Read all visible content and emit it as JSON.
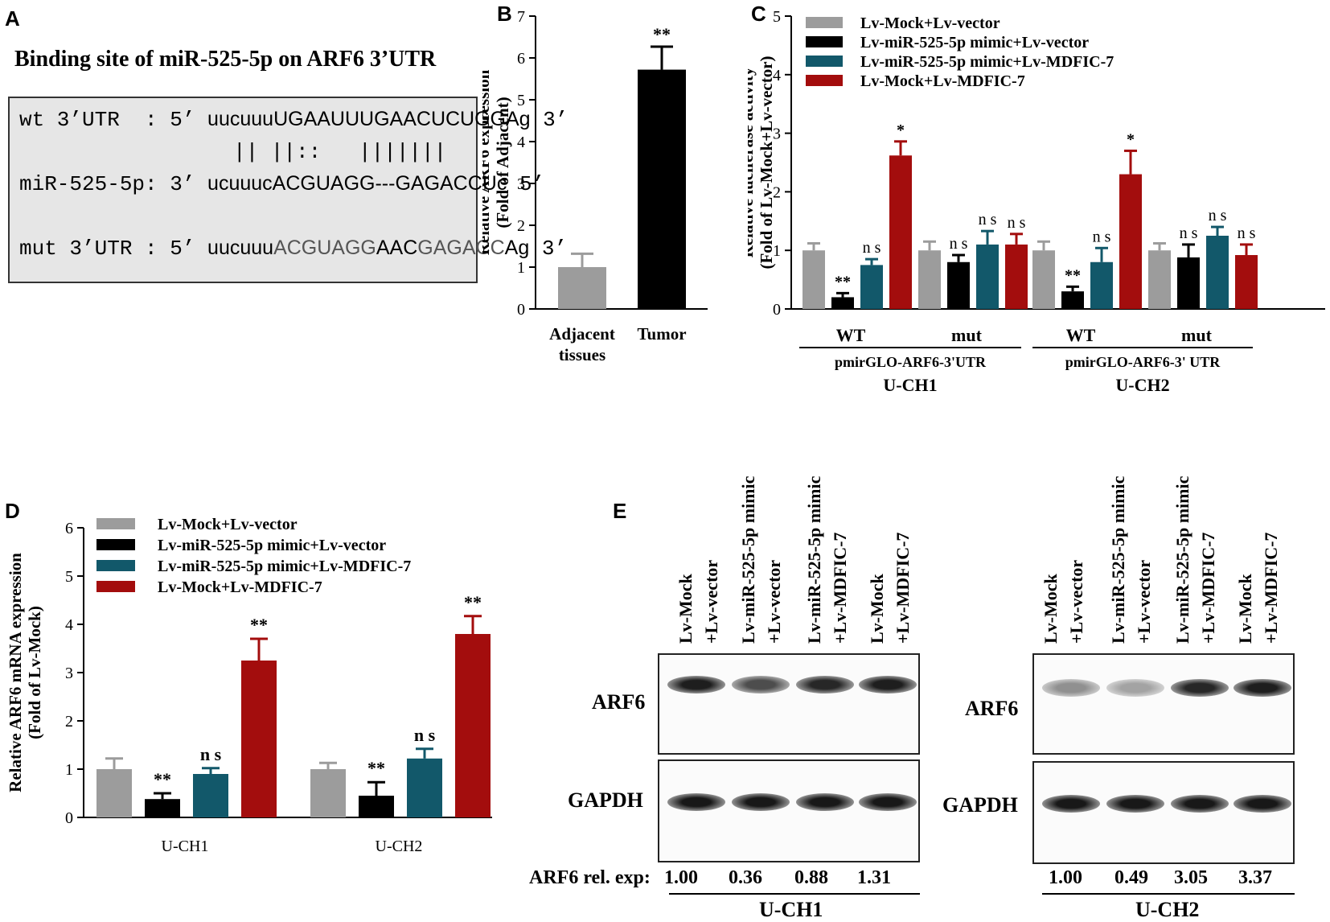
{
  "panel_letters": {
    "a": "A",
    "b": "B",
    "c": "C",
    "d": "D",
    "e": "E"
  },
  "panel_a": {
    "title": "Binding site of miR-525-5p on ARF6 3’UTR",
    "wt": {
      "name": "wt 3’UTR  : 5’ ",
      "seq_lower": "uucuuu",
      "seq_upper": "UGAAUUUGAACUCUGGAg",
      "end": " 3’"
    },
    "pairs": "|| ||::   |||||||",
    "mir": {
      "name": "miR-525-5p: 3’ ",
      "seq_lower": "ucuuuc",
      "seq_upper": "ACGUAGG---GAGACCUc",
      "end": " 5’"
    },
    "mut": {
      "name": "mut 3’UTR : 5’ ",
      "seq_lower": "uucuuu",
      "seq_mut1": "ACGUAGG",
      "seq_mid": "AAC",
      "seq_mut2": "GAGACC",
      "seq_tail": "Ag",
      "end": " 3’"
    }
  },
  "chart_data": [
    {
      "id": "B",
      "type": "bar",
      "title": "",
      "ylabel": [
        "Relative ARF6 expression",
        "(Fold of Adjacent)"
      ],
      "categories": [
        [
          "Adjacent",
          "tissues"
        ],
        [
          "Tumor"
        ]
      ],
      "values": [
        1.0,
        5.72
      ],
      "errors": [
        0.32,
        0.55
      ],
      "colors": [
        "#9c9c9c",
        "#000000"
      ],
      "significance": [
        "",
        "**"
      ],
      "ylim": [
        0,
        7
      ],
      "yticks": [
        "0",
        "1",
        "2",
        "3",
        "4",
        "5",
        "6",
        "7"
      ]
    },
    {
      "id": "C",
      "type": "bar",
      "ylabel": [
        "Relative luciferase activity",
        "(Fold of Lv-Mock+Lv-vector)"
      ],
      "ylim": [
        0,
        5
      ],
      "yticks": [
        "0",
        "1",
        "2",
        "3",
        "4",
        "5"
      ],
      "legend": [
        "Lv-Mock+Lv-vector",
        "Lv-miR-525-5p mimic+Lv-vector",
        "Lv-miR-525-5p mimic+Lv-MDFIC-7",
        "Lv-Mock+Lv-MDFIC-7"
      ],
      "colors": [
        "#9c9c9c",
        "#000000",
        "#12586a",
        "#a30d0d"
      ],
      "groups": [
        "WT",
        "mut",
        "WT",
        "mut"
      ],
      "subgroup_labels": [
        "pmirGLO-ARF6-3'UTR",
        "pmirGLO-ARF6-3' UTR"
      ],
      "cell_labels": [
        "U-CH1",
        "U-CH2"
      ],
      "series": [
        {
          "name": "Lv-Mock+Lv-vector",
          "values": [
            1.0,
            1.0,
            1.0,
            1.0
          ],
          "errors": [
            0.12,
            0.15,
            0.15,
            0.12
          ],
          "sig": [
            "",
            "",
            "",
            ""
          ]
        },
        {
          "name": "Lv-miR-525-5p mimic+Lv-vector",
          "values": [
            0.2,
            0.8,
            0.3,
            0.88
          ],
          "errors": [
            0.07,
            0.12,
            0.08,
            0.22
          ],
          "sig": [
            "**",
            "n s",
            "**",
            "n s"
          ]
        },
        {
          "name": "Lv-miR-525-5p mimic+Lv-MDFIC-7",
          "values": [
            0.75,
            1.1,
            0.8,
            1.25
          ],
          "errors": [
            0.1,
            0.23,
            0.24,
            0.15
          ],
          "sig": [
            "n s",
            "n s",
            "n s",
            "n s"
          ]
        },
        {
          "name": "Lv-Mock+Lv-MDFIC-7",
          "values": [
            2.62,
            1.1,
            2.3,
            0.92
          ],
          "errors": [
            0.24,
            0.18,
            0.4,
            0.18
          ],
          "sig": [
            "*",
            "n s",
            "*",
            "n s"
          ]
        }
      ]
    },
    {
      "id": "D",
      "type": "bar",
      "ylabel": [
        "Relative ARF6 mRNA expression",
        "(Fold of Lv-Mock)"
      ],
      "ylim": [
        0,
        6
      ],
      "yticks": [
        "0",
        "1",
        "2",
        "3",
        "4",
        "5",
        "6"
      ],
      "legend": [
        "Lv-Mock+Lv-vector",
        "Lv-miR-525-5p mimic+Lv-vector",
        "Lv-miR-525-5p mimic+Lv-MDFIC-7",
        "Lv-Mock+Lv-MDFIC-7"
      ],
      "colors": [
        "#9c9c9c",
        "#000000",
        "#12586a",
        "#a30d0d"
      ],
      "categories": [
        "U-CH1",
        "U-CH2"
      ],
      "series": [
        {
          "name": "Lv-Mock+Lv-vector",
          "values": [
            1.0,
            1.0
          ],
          "errors": [
            0.22,
            0.13
          ],
          "sig": [
            "",
            ""
          ]
        },
        {
          "name": "Lv-miR-525-5p mimic+Lv-vector",
          "values": [
            0.38,
            0.45
          ],
          "errors": [
            0.12,
            0.28
          ],
          "sig": [
            "**",
            "**"
          ]
        },
        {
          "name": "Lv-miR-525-5p mimic+Lv-MDFIC-7",
          "values": [
            0.9,
            1.22
          ],
          "errors": [
            0.12,
            0.2
          ],
          "sig": [
            "n s",
            "n s"
          ]
        },
        {
          "name": "Lv-Mock+Lv-MDFIC-7",
          "values": [
            3.25,
            3.8
          ],
          "errors": [
            0.45,
            0.37
          ],
          "sig": [
            "**",
            "**"
          ]
        }
      ]
    }
  ],
  "panel_e": {
    "lane_headers": [
      [
        "Lv-Mock",
        "+Lv-vector"
      ],
      [
        "Lv-miR-525-5p mimic",
        "+Lv-vector"
      ],
      [
        "Lv-miR-525-5p mimic",
        "+Lv-MDFIC-7"
      ],
      [
        "Lv-Mock",
        "+Lv-MDFIC-7"
      ]
    ],
    "row_labels": [
      "ARF6",
      "GAPDH"
    ],
    "rel_exp_label": "ARF6 rel. exp:",
    "blots": [
      {
        "cell": "U-CH1",
        "rel_exp": [
          "1.00",
          "0.36",
          "0.88",
          "1.31"
        ],
        "arf6_intensity": [
          0.95,
          0.7,
          0.9,
          0.95
        ]
      },
      {
        "cell": "U-CH2",
        "rel_exp": [
          "1.00",
          "0.49",
          "3.05",
          "3.37"
        ],
        "arf6_intensity": [
          0.35,
          0.25,
          0.9,
          0.95
        ]
      }
    ]
  }
}
